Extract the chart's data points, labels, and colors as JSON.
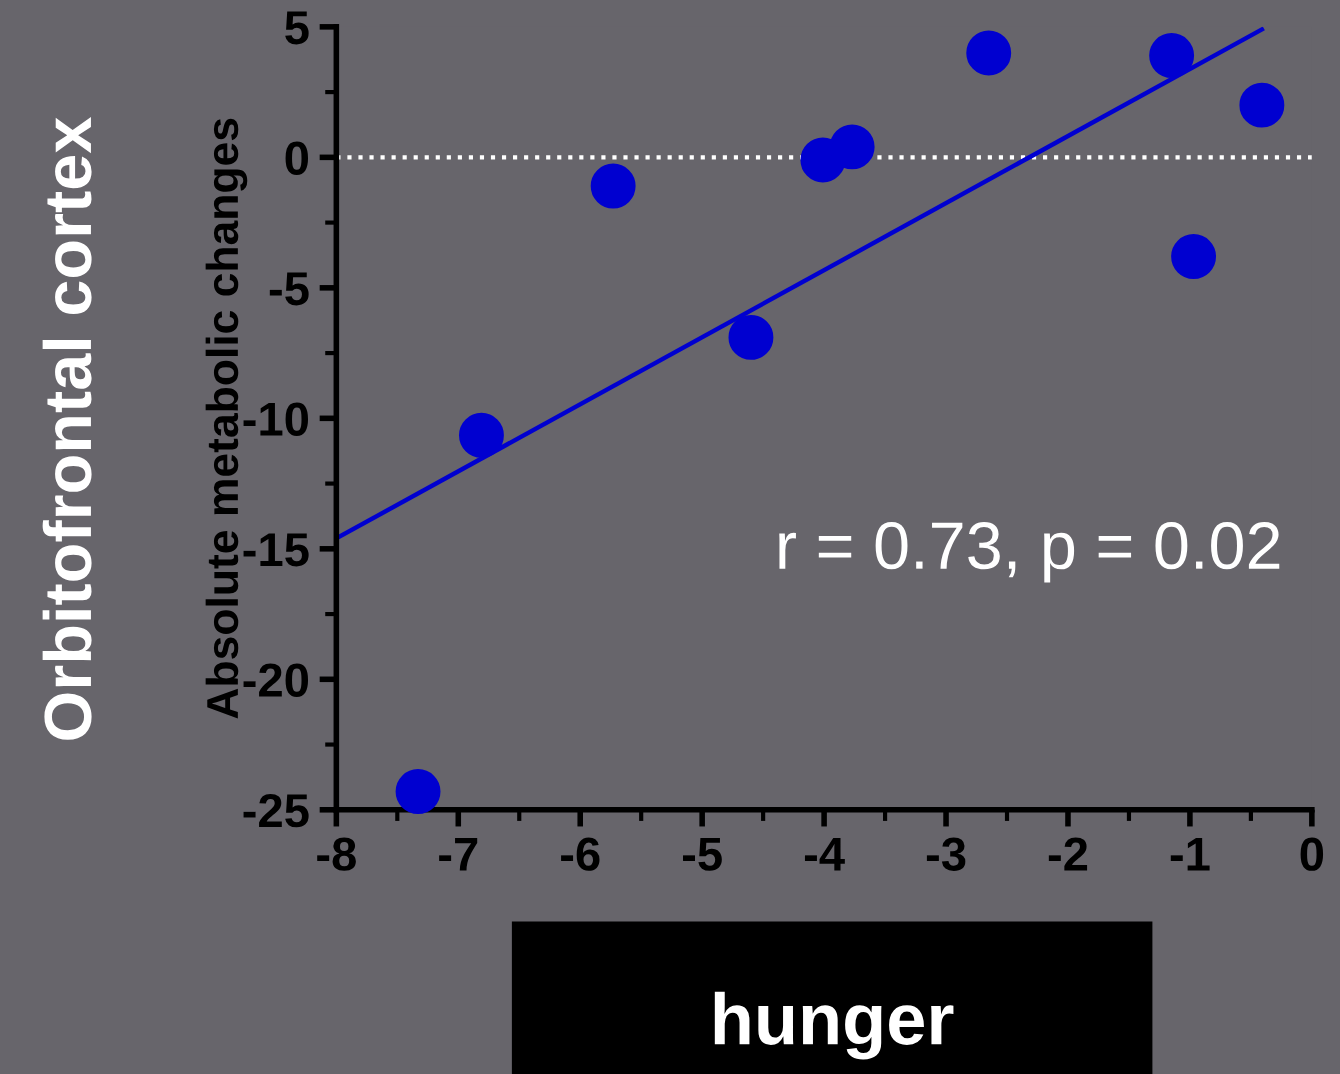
{
  "chart_data": {
    "type": "scatter",
    "title": "Orbitofrontal cortex",
    "ylabel": "Absolute metabolic changes",
    "xlabel": "hunger",
    "annotations": [
      "r = 0.73, p = 0.02"
    ],
    "series": [
      {
        "marker": "circle",
        "color": "#0000d0",
        "x": [
          -7.33,
          -6.81,
          -5.73,
          -4.6,
          -4.01,
          -3.77,
          -2.65,
          -1.15,
          -0.97,
          -0.41
        ],
        "values": [
          -24.3,
          -10.65,
          -1.1,
          -6.9,
          -0.1,
          0.4,
          4.0,
          3.9,
          -3.8,
          2.0
        ]
      },
      {
        "type": "line",
        "marker": "none",
        "color": "#0000d0",
        "x": [
          -8,
          -0.41
        ],
        "values": [
          -14.6,
          4.9
        ]
      }
    ],
    "ref_lines": [
      {
        "axis": "y",
        "value": 0,
        "color": "#ffffff",
        "line_style": "dotted"
      }
    ],
    "xlim": [
      -8,
      0
    ],
    "xticks": [
      -8,
      -7,
      -6,
      -5,
      -4,
      -3,
      -2,
      -1,
      0
    ],
    "ylim": [
      -25,
      5
    ],
    "yticks": [
      -25,
      -20,
      -15,
      -10,
      -5,
      0,
      5
    ],
    "grid": false,
    "legend": false
  }
}
